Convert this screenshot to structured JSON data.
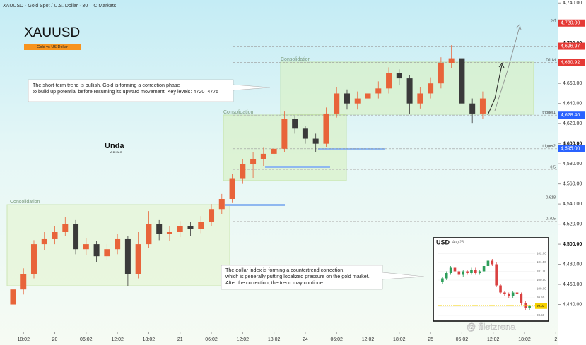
{
  "chart_data": [
    {
      "type": "candlestick",
      "header": "XAUUSD · Gold Spot / U.S. Dollar · 30 · IC Markets",
      "title": "XAUUSD",
      "subtitle": "Gold vs US Dollar",
      "logo": [
        "Unda",
        "ADING"
      ],
      "watermark": "@ filetzrena",
      "annotations": [
        [
          "The short-term trend is bullish. Gold is forming a correction phase",
          "to build up potential before resuming its upward movement. Key levels: 4720–4775"
        ],
        [
          "The dollar index is forming a countertrend correction,",
          "which is generally putting localized pressure on the gold market.",
          "After the correction, the trend may continue"
        ]
      ],
      "zone_labels": [
        "Consolidation",
        "Consolidation",
        "Consolidation"
      ],
      "up_color": "#e8643a",
      "down_color": "#3a3a3a",
      "x": [
        1,
        3,
        5,
        7,
        9,
        11,
        13,
        15,
        17,
        19,
        21,
        23,
        25,
        27,
        29,
        31,
        33,
        35,
        37,
        39,
        41,
        43,
        45,
        47,
        49,
        51,
        53,
        55,
        57,
        59,
        61,
        63,
        65,
        67,
        69,
        71,
        73,
        75,
        77,
        79,
        81,
        83,
        85,
        87,
        89,
        91
      ],
      "open": [
        4440,
        4455,
        4470,
        4500,
        4505,
        4512,
        4520,
        4495,
        4500,
        4488,
        4495,
        4505,
        4470,
        4500,
        4520,
        4510,
        4512,
        4518,
        4515,
        4522,
        4535,
        4545,
        4565,
        4580,
        4585,
        4590,
        4595,
        4625,
        4615,
        4605,
        4600,
        4630,
        4650,
        4640,
        4645,
        4650,
        4655,
        4670,
        4665,
        4640,
        4650,
        4660,
        4680,
        4685,
        4640,
        4630
      ],
      "high": [
        4460,
        4476,
        4504,
        4512,
        4518,
        4527,
        4524,
        4506,
        4503,
        4500,
        4510,
        4508,
        4512,
        4533,
        4524,
        4518,
        4523,
        4522,
        4528,
        4540,
        4550,
        4570,
        4585,
        4592,
        4596,
        4600,
        4632,
        4628,
        4618,
        4610,
        4636,
        4656,
        4654,
        4652,
        4658,
        4662,
        4676,
        4674,
        4668,
        4656,
        4666,
        4686,
        4698,
        4690,
        4645,
        4652
      ],
      "low": [
        4436,
        4450,
        4466,
        4494,
        4500,
        4508,
        4490,
        4489,
        4482,
        4484,
        4490,
        4458,
        4466,
        4496,
        4504,
        4503,
        4507,
        4508,
        4511,
        4518,
        4530,
        4541,
        4560,
        4566,
        4578,
        4585,
        4592,
        4610,
        4600,
        4592,
        4597,
        4626,
        4634,
        4634,
        4640,
        4645,
        4650,
        4658,
        4630,
        4635,
        4645,
        4655,
        4675,
        4632,
        4620,
        4625
      ],
      "close": [
        4455,
        4470,
        4500,
        4505,
        4512,
        4520,
        4495,
        4500,
        4488,
        4495,
        4505,
        4470,
        4500,
        4520,
        4510,
        4512,
        4518,
        4515,
        4522,
        4535,
        4545,
        4565,
        4580,
        4585,
        4590,
        4595,
        4625,
        4615,
        4605,
        4600,
        4630,
        4650,
        4640,
        4645,
        4650,
        4655,
        4670,
        4665,
        4640,
        4650,
        4660,
        4680,
        4685,
        4640,
        4630,
        4645
      ],
      "xlim": [
        -1.5,
        105.5
      ],
      "xticks": [
        {
          "value": 3,
          "label": "18:02"
        },
        {
          "value": 9,
          "label": "20"
        },
        {
          "value": 15,
          "label": "06:02"
        },
        {
          "value": 21,
          "label": "12:02"
        },
        {
          "value": 27,
          "label": "18:02"
        },
        {
          "value": 33,
          "label": "21"
        },
        {
          "value": 39,
          "label": "06:02"
        },
        {
          "value": 45,
          "label": "12:02"
        },
        {
          "value": 51,
          "label": "18:02"
        },
        {
          "value": 57,
          "label": "24"
        },
        {
          "value": 63,
          "label": "06:02"
        },
        {
          "value": 69,
          "label": "12:02"
        },
        {
          "value": 75,
          "label": "18:02"
        },
        {
          "value": 81,
          "label": "25"
        },
        {
          "value": 87,
          "label": "06:02"
        },
        {
          "value": 93,
          "label": "12:02"
        },
        {
          "value": 99,
          "label": "18:02"
        },
        {
          "value": 105,
          "label": "2"
        }
      ],
      "ylim": [
        4413,
        4743
      ],
      "yticks": [
        {
          "value": 4440,
          "label": "4,440.00"
        },
        {
          "value": 4460,
          "label": "4,460.00"
        },
        {
          "value": 4480,
          "label": "4,480.00"
        },
        {
          "value": 4500,
          "label": "4,500.00"
        },
        {
          "value": 4520,
          "label": "4,520.00"
        },
        {
          "value": 4540,
          "label": "4,540.00"
        },
        {
          "value": 4560,
          "label": "4,560.00"
        },
        {
          "value": 4580,
          "label": "4,580.00"
        },
        {
          "value": 4600,
          "label": "4,600.00"
        },
        {
          "value": 4620,
          "label": "4,620.00"
        },
        {
          "value": 4640,
          "label": "4,640.00"
        },
        {
          "value": 4660,
          "label": "4,660.00"
        },
        {
          "value": 4680,
          "label": "4,680.00"
        },
        {
          "value": 4700,
          "label": "4,700.00"
        },
        {
          "value": 4720,
          "label": "4,720.00"
        },
        {
          "value": 4740,
          "label": "4,740.00"
        }
      ],
      "levels": [
        {
          "name": "pvt",
          "value": 4720,
          "label": "4,720.00",
          "color": "#e53935"
        },
        {
          "value": 4696.97,
          "label": "4,696.97",
          "color": "#e53935"
        },
        {
          "name": "D1 lvl",
          "value": 4680.92,
          "label": "4,680.92",
          "color": "#e53935"
        },
        {
          "name": "trigger1",
          "value": 4628.4,
          "label": "4,628.40",
          "color": "#2962ff"
        },
        {
          "name": "trigger2",
          "value": 4595,
          "label": "4,595.00",
          "color": "#2962ff"
        },
        {
          "name": "0.5",
          "value": 4574
        },
        {
          "name": "0.618",
          "value": 4544
        },
        {
          "name": "0.705",
          "value": 4523
        }
      ]
    },
    {
      "type": "candlestick",
      "title": "USD",
      "subtitle": "Aug 25",
      "up_color": "#2e9e5b",
      "down_color": "#d94040",
      "x": [
        1,
        2,
        3,
        4,
        5,
        6,
        7,
        8,
        9,
        10,
        11,
        12,
        13,
        14,
        15,
        16,
        17,
        18,
        19,
        20,
        21,
        22
      ],
      "open": [
        100.4,
        100.6,
        100.9,
        101.2,
        101.0,
        100.8,
        101.0,
        100.9,
        101.1,
        100.9,
        101.0,
        101.3,
        101.6,
        101.4,
        100.2,
        99.8,
        99.7,
        99.6,
        99.8,
        99.7,
        99.2,
        98.9
      ],
      "high": [
        100.7,
        101.0,
        101.3,
        101.3,
        101.1,
        101.1,
        101.1,
        101.2,
        101.2,
        101.1,
        101.4,
        101.7,
        101.7,
        101.5,
        100.3,
        99.9,
        99.8,
        99.9,
        99.9,
        99.8,
        99.3,
        99.1
      ],
      "low": [
        100.3,
        100.5,
        100.8,
        100.9,
        100.7,
        100.7,
        100.8,
        100.8,
        100.8,
        100.8,
        100.9,
        101.2,
        101.3,
        100.1,
        99.7,
        99.6,
        99.5,
        99.5,
        99.6,
        99.1,
        98.8,
        98.8
      ],
      "close": [
        100.6,
        100.9,
        101.2,
        101.0,
        100.8,
        101.0,
        100.9,
        101.1,
        100.9,
        101.0,
        101.3,
        101.6,
        101.4,
        100.2,
        99.8,
        99.7,
        99.6,
        99.8,
        99.7,
        99.2,
        98.9,
        99.03
      ],
      "xlim": [
        0,
        23
      ],
      "ylim": [
        98.3,
        102.3
      ],
      "yticks": [
        {
          "value": 98.5,
          "label": "98.50"
        },
        {
          "value": 99,
          "label": "99.00"
        },
        {
          "value": 99.5,
          "label": "99.50"
        },
        {
          "value": 100,
          "label": "100.00"
        },
        {
          "value": 100.5,
          "label": "100.50"
        },
        {
          "value": 101,
          "label": "101.00"
        },
        {
          "value": 101.5,
          "label": "101.50"
        },
        {
          "value": 102,
          "label": "102.00"
        }
      ],
      "last": 99.03,
      "last_color": "#f5d000"
    }
  ]
}
